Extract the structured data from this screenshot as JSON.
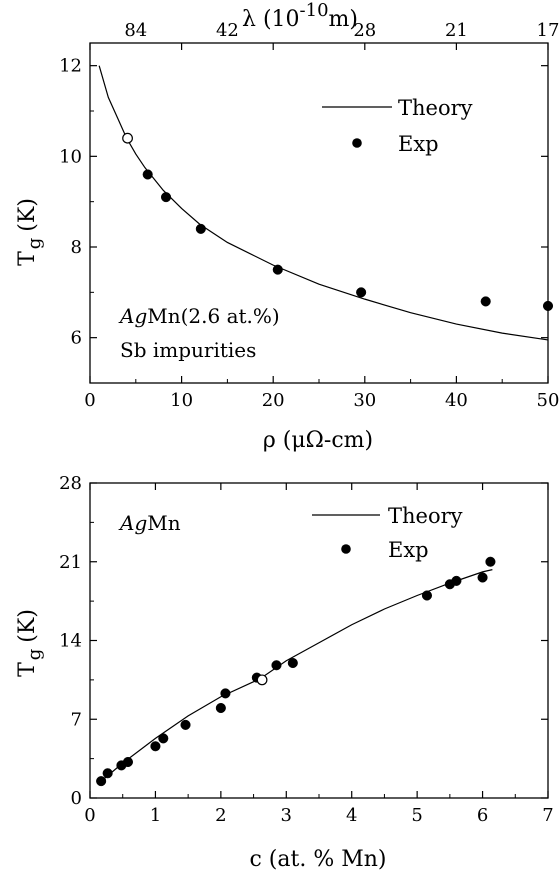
{
  "chart_data": [
    {
      "type": "line",
      "xlabel": "ρ (μΩ-cm)",
      "ylabel_main": "T",
      "ylabel_sub": "g",
      "ylabel_unit": "(K)",
      "top_axis": {
        "label_prefix": "λ (10",
        "label_exp": "-10",
        "label_suffix": "m)",
        "ticks": [
          "84",
          "42",
          "28",
          "21",
          "17"
        ],
        "tick_at_rho": [
          5,
          15,
          30,
          40,
          50
        ]
      },
      "xlim": [
        0,
        50
      ],
      "ylim": [
        5,
        12.5
      ],
      "xticks": [
        0,
        10,
        20,
        30,
        40,
        50
      ],
      "yticks": [
        6,
        8,
        10,
        12
      ],
      "annotation_line1_italic": "Ag",
      "annotation_line1_rest": "Mn(2.6 at.%)",
      "annotation_line2": "Sb impurities",
      "legend": {
        "placement": "top-right",
        "line_label": "Theory",
        "dot_label": "Exp"
      },
      "series": [
        {
          "name": "Theory",
          "style": "line",
          "x": [
            1,
            2,
            3,
            4,
            5,
            6,
            8,
            10,
            12,
            15,
            20,
            25,
            30,
            35,
            40,
            45,
            50
          ],
          "y": [
            12.0,
            11.3,
            10.85,
            10.4,
            10.05,
            9.75,
            9.25,
            8.85,
            8.5,
            8.1,
            7.6,
            7.18,
            6.85,
            6.55,
            6.3,
            6.1,
            5.95
          ]
        },
        {
          "name": "Exp",
          "style": "filled-dots",
          "x": [
            6.3,
            8.3,
            12.1,
            20.5,
            29.6,
            43.2,
            50.0
          ],
          "y": [
            9.6,
            9.1,
            8.4,
            7.5,
            7.0,
            6.8,
            6.7
          ]
        },
        {
          "style": "open-dots",
          "x": [
            4.1
          ],
          "y": [
            10.4
          ]
        }
      ]
    },
    {
      "type": "line",
      "xlabel": "c (at. % Mn)",
      "ylabel_main": "T",
      "ylabel_sub": "g",
      "ylabel_unit": "(K)",
      "xlim": [
        0,
        7
      ],
      "ylim": [
        0,
        28
      ],
      "xticks": [
        0,
        1,
        2,
        3,
        4,
        5,
        6,
        7
      ],
      "yticks": [
        0,
        7,
        14,
        21,
        28
      ],
      "annotation_line1_italic": "Ag",
      "annotation_line1_rest": "Mn",
      "legend": {
        "placement": "top-right",
        "line_label": "Theory",
        "dot_label": "Exp"
      },
      "series": [
        {
          "name": "Theory",
          "style": "line",
          "x": [
            0.15,
            0.5,
            1.0,
            1.5,
            2.0,
            2.6,
            3.0,
            3.5,
            4.0,
            4.5,
            5.0,
            5.5,
            6.0,
            6.15
          ],
          "y": [
            1.4,
            3.1,
            5.3,
            7.3,
            9.0,
            10.6,
            12.2,
            13.8,
            15.4,
            16.8,
            18.0,
            19.1,
            20.1,
            20.3
          ]
        },
        {
          "name": "Exp",
          "style": "filled-dots",
          "x": [
            0.17,
            0.27,
            0.48,
            0.58,
            1.0,
            1.12,
            1.46,
            2.0,
            2.07,
            2.55,
            2.85,
            3.1,
            5.15,
            5.5,
            5.6,
            6.0,
            6.12
          ],
          "y": [
            1.5,
            2.2,
            2.9,
            3.2,
            4.6,
            5.3,
            6.5,
            8.0,
            9.3,
            10.7,
            11.8,
            12.0,
            18.0,
            19.0,
            19.3,
            19.6,
            21.0
          ]
        },
        {
          "style": "open-dots",
          "x": [
            2.63
          ],
          "y": [
            10.5
          ]
        }
      ]
    }
  ]
}
